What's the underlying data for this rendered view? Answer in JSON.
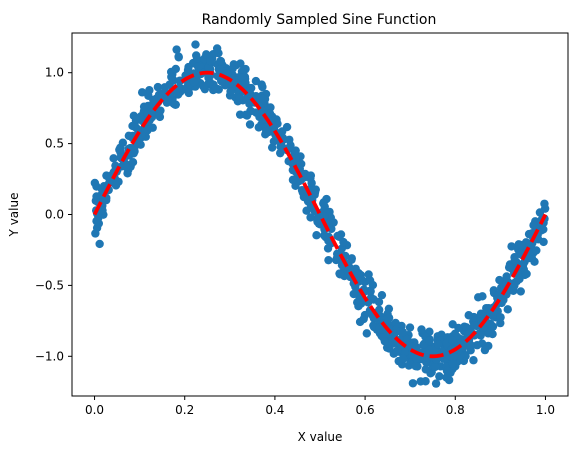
{
  "chart_data": {
    "type": "scatter",
    "title": "Randomly Sampled Sine Function",
    "xlabel": "X value",
    "ylabel": "Y value",
    "xlim": [
      -0.05,
      1.05
    ],
    "ylim": [
      -1.28,
      1.28
    ],
    "xticks": [
      0.0,
      0.2,
      0.4,
      0.6,
      0.8,
      1.0
    ],
    "xtick_labels": [
      "0.0",
      "0.2",
      "0.4",
      "0.6",
      "0.8",
      "1.0"
    ],
    "yticks": [
      -1.0,
      -0.5,
      0.0,
      0.5,
      1.0
    ],
    "ytick_labels": [
      "−1.0",
      "−0.5",
      "0.0",
      "0.5",
      "1.0"
    ],
    "grid": false,
    "series": [
      {
        "kind": "scatter",
        "color": "#1f77b4",
        "function": "sin(2*pi*x) + noise",
        "x_range": [
          0.0,
          1.0
        ],
        "point_count": 1000,
        "noise_std": 0.08
      },
      {
        "kind": "line",
        "color": "#ff0000",
        "style": "dashed",
        "function": "sin(2*pi*x)",
        "x_range": [
          0.0,
          1.0
        ]
      }
    ]
  }
}
